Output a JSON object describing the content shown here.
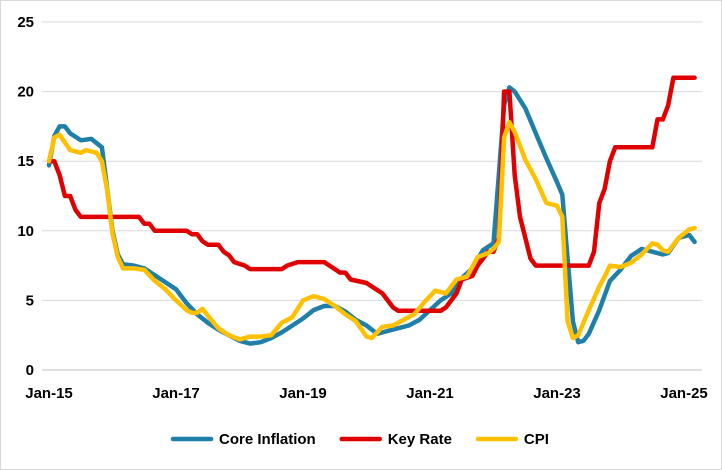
{
  "chart_data": {
    "type": "line",
    "title": "",
    "xlabel": "",
    "ylabel": "",
    "x_start": "Jan-15",
    "x_end": "Mar-25",
    "xticks": [
      "Jan-15",
      "Jan-17",
      "Jan-19",
      "Jan-21",
      "Jan-23",
      "Jan-25"
    ],
    "ylim": [
      0,
      25
    ],
    "yticks": [
      0,
      5,
      10,
      15,
      20,
      25
    ],
    "grid": true,
    "legend_position": "bottom",
    "series": [
      {
        "name": "Core Inflation",
        "color": "#1f7fa8",
        "points": [
          [
            "Jan-15",
            14.7
          ],
          [
            "Feb-15",
            16.8
          ],
          [
            "Mar-15",
            17.5
          ],
          [
            "Apr-15",
            17.5
          ],
          [
            "May-15",
            17.0
          ],
          [
            "Jul-15",
            16.5
          ],
          [
            "Sep-15",
            16.6
          ],
          [
            "Nov-15",
            16.0
          ],
          [
            "Dec-15",
            13.0
          ],
          [
            "Jan-16",
            10.0
          ],
          [
            "Feb-16",
            8.3
          ],
          [
            "Mar-16",
            7.6
          ],
          [
            "May-16",
            7.5
          ],
          [
            "Jul-16",
            7.3
          ],
          [
            "Sep-16",
            6.8
          ],
          [
            "Nov-16",
            6.3
          ],
          [
            "Jan-17",
            5.8
          ],
          [
            "Mar-17",
            4.8
          ],
          [
            "May-17",
            4.0
          ],
          [
            "Jul-17",
            3.4
          ],
          [
            "Sep-17",
            2.9
          ],
          [
            "Nov-17",
            2.5
          ],
          [
            "Jan-18",
            2.1
          ],
          [
            "Mar-18",
            1.9
          ],
          [
            "May-18",
            2.0
          ],
          [
            "Jul-18",
            2.3
          ],
          [
            "Sep-18",
            2.7
          ],
          [
            "Nov-18",
            3.2
          ],
          [
            "Jan-19",
            3.7
          ],
          [
            "Mar-19",
            4.3
          ],
          [
            "May-19",
            4.6
          ],
          [
            "Jul-19",
            4.6
          ],
          [
            "Sep-19",
            4.2
          ],
          [
            "Nov-19",
            3.6
          ],
          [
            "Jan-20",
            3.2
          ],
          [
            "Mar-20",
            2.6
          ],
          [
            "May-20",
            2.8
          ],
          [
            "Jul-20",
            3.0
          ],
          [
            "Sep-20",
            3.2
          ],
          [
            "Nov-20",
            3.6
          ],
          [
            "Jan-21",
            4.3
          ],
          [
            "Mar-21",
            5.0
          ],
          [
            "May-21",
            5.5
          ],
          [
            "Jul-21",
            6.6
          ],
          [
            "Sep-21",
            7.3
          ],
          [
            "Nov-21",
            8.6
          ],
          [
            "Jan-22",
            9.1
          ],
          [
            "Feb-22",
            14.0
          ],
          [
            "Mar-22",
            19.0
          ],
          [
            "Apr-22",
            20.3
          ],
          [
            "May-22",
            20.0
          ],
          [
            "Jul-22",
            18.8
          ],
          [
            "Sep-22",
            17.0
          ],
          [
            "Nov-22",
            15.2
          ],
          [
            "Jan-23",
            13.5
          ],
          [
            "Feb-23",
            12.6
          ],
          [
            "Mar-23",
            8.0
          ],
          [
            "Apr-23",
            3.5
          ],
          [
            "May-23",
            2.0
          ],
          [
            "Jun-23",
            2.1
          ],
          [
            "Jul-23",
            2.6
          ],
          [
            "Sep-23",
            4.3
          ],
          [
            "Nov-23",
            6.4
          ],
          [
            "Jan-24",
            7.2
          ],
          [
            "Mar-24",
            8.2
          ],
          [
            "May-24",
            8.7
          ],
          [
            "Jul-24",
            8.5
          ],
          [
            "Sep-24",
            8.3
          ],
          [
            "Oct-24",
            8.4
          ],
          [
            "Dec-24",
            9.5
          ],
          [
            "Feb-25",
            9.7
          ],
          [
            "Mar-25",
            9.2
          ]
        ]
      },
      {
        "name": "Key Rate",
        "color": "#e00000",
        "points": [
          [
            "Jan-15",
            15.0
          ],
          [
            "Feb-15",
            15.0
          ],
          [
            "Mar-15",
            14.0
          ],
          [
            "Apr-15",
            12.5
          ],
          [
            "May-15",
            12.5
          ],
          [
            "Jun-15",
            11.5
          ],
          [
            "Jul-15",
            11.0
          ],
          [
            "Aug-15",
            11.0
          ],
          [
            "Jun-16",
            11.0
          ],
          [
            "Jul-16",
            10.5
          ],
          [
            "Aug-16",
            10.5
          ],
          [
            "Sep-16",
            10.0
          ],
          [
            "Mar-17",
            10.0
          ],
          [
            "Apr-17",
            9.75
          ],
          [
            "May-17",
            9.75
          ],
          [
            "Jun-17",
            9.25
          ],
          [
            "Jul-17",
            9.0
          ],
          [
            "Sep-17",
            9.0
          ],
          [
            "Oct-17",
            8.5
          ],
          [
            "Nov-17",
            8.25
          ],
          [
            "Dec-17",
            7.75
          ],
          [
            "Feb-18",
            7.5
          ],
          [
            "Mar-18",
            7.25
          ],
          [
            "Sep-18",
            7.25
          ],
          [
            "Oct-18",
            7.5
          ],
          [
            "Dec-18",
            7.75
          ],
          [
            "May-19",
            7.75
          ],
          [
            "Jun-19",
            7.5
          ],
          [
            "Jul-19",
            7.25
          ],
          [
            "Aug-19",
            7.0
          ],
          [
            "Sep-19",
            7.0
          ],
          [
            "Oct-19",
            6.5
          ],
          [
            "Jan-20",
            6.25
          ],
          [
            "Feb-20",
            6.0
          ],
          [
            "Apr-20",
            5.5
          ],
          [
            "Jun-20",
            4.5
          ],
          [
            "Jul-20",
            4.25
          ],
          [
            "Mar-21",
            4.25
          ],
          [
            "Apr-21",
            4.5
          ],
          [
            "May-21",
            5.0
          ],
          [
            "Jun-21",
            5.5
          ],
          [
            "Jul-21",
            6.5
          ],
          [
            "Sep-21",
            6.75
          ],
          [
            "Oct-21",
            7.5
          ],
          [
            "Dec-21",
            8.5
          ],
          [
            "Jan-22",
            8.5
          ],
          [
            "Feb-22",
            9.5
          ],
          [
            "Mar-22",
            20.0
          ],
          [
            "Apr-22",
            20.0
          ],
          [
            "May-22",
            14.0
          ],
          [
            "Jun-22",
            11.0
          ],
          [
            "Jul-22",
            9.5
          ],
          [
            "Aug-22",
            8.0
          ],
          [
            "Sep-22",
            7.5
          ],
          [
            "Jul-23",
            7.5
          ],
          [
            "Aug-23",
            8.5
          ],
          [
            "Sep-23",
            12.0
          ],
          [
            "Oct-23",
            13.0
          ],
          [
            "Nov-23",
            15.0
          ],
          [
            "Dec-23",
            16.0
          ],
          [
            "Jul-24",
            16.0
          ],
          [
            "Aug-24",
            18.0
          ],
          [
            "Sep-24",
            18.0
          ],
          [
            "Oct-24",
            19.0
          ],
          [
            "Nov-24",
            21.0
          ],
          [
            "Mar-25",
            21.0
          ]
        ]
      },
      {
        "name": "CPI",
        "color": "#ffc000",
        "points": [
          [
            "Jan-15",
            15.0
          ],
          [
            "Feb-15",
            16.7
          ],
          [
            "Mar-15",
            16.9
          ],
          [
            "May-15",
            15.8
          ],
          [
            "Jul-15",
            15.6
          ],
          [
            "Aug-15",
            15.8
          ],
          [
            "Oct-15",
            15.6
          ],
          [
            "Nov-15",
            15.0
          ],
          [
            "Dec-15",
            12.9
          ],
          [
            "Jan-16",
            9.8
          ],
          [
            "Feb-16",
            8.1
          ],
          [
            "Mar-16",
            7.3
          ],
          [
            "May-16",
            7.3
          ],
          [
            "Jul-16",
            7.2
          ],
          [
            "Sep-16",
            6.4
          ],
          [
            "Nov-16",
            5.8
          ],
          [
            "Jan-17",
            5.0
          ],
          [
            "Mar-17",
            4.3
          ],
          [
            "Apr-17",
            4.1
          ],
          [
            "May-17",
            4.1
          ],
          [
            "Jun-17",
            4.4
          ],
          [
            "Jul-17",
            3.9
          ],
          [
            "Sep-17",
            3.0
          ],
          [
            "Nov-17",
            2.5
          ],
          [
            "Jan-18",
            2.2
          ],
          [
            "Mar-18",
            2.4
          ],
          [
            "May-18",
            2.4
          ],
          [
            "Jul-18",
            2.5
          ],
          [
            "Sep-18",
            3.4
          ],
          [
            "Nov-18",
            3.8
          ],
          [
            "Jan-19",
            5.0
          ],
          [
            "Mar-19",
            5.3
          ],
          [
            "May-19",
            5.1
          ],
          [
            "Jul-19",
            4.6
          ],
          [
            "Sep-19",
            4.0
          ],
          [
            "Nov-19",
            3.5
          ],
          [
            "Jan-20",
            2.4
          ],
          [
            "Feb-20",
            2.3
          ],
          [
            "Apr-20",
            3.1
          ],
          [
            "Jun-20",
            3.2
          ],
          [
            "Aug-20",
            3.6
          ],
          [
            "Oct-20",
            4.0
          ],
          [
            "Dec-20",
            4.9
          ],
          [
            "Feb-21",
            5.7
          ],
          [
            "Apr-21",
            5.5
          ],
          [
            "Jun-21",
            6.5
          ],
          [
            "Aug-21",
            6.7
          ],
          [
            "Oct-21",
            8.1
          ],
          [
            "Dec-21",
            8.4
          ],
          [
            "Jan-22",
            8.7
          ],
          [
            "Feb-22",
            9.2
          ],
          [
            "Mar-22",
            16.7
          ],
          [
            "Apr-22",
            17.8
          ],
          [
            "May-22",
            17.1
          ],
          [
            "Jul-22",
            15.1
          ],
          [
            "Sep-22",
            13.7
          ],
          [
            "Nov-22",
            12.0
          ],
          [
            "Jan-23",
            11.8
          ],
          [
            "Feb-23",
            11.0
          ],
          [
            "Mar-23",
            3.5
          ],
          [
            "Apr-23",
            2.3
          ],
          [
            "May-23",
            2.5
          ],
          [
            "Jul-23",
            4.3
          ],
          [
            "Sep-23",
            6.0
          ],
          [
            "Oct-23",
            6.7
          ],
          [
            "Nov-23",
            7.5
          ],
          [
            "Jan-24",
            7.4
          ],
          [
            "Mar-24",
            7.7
          ],
          [
            "May-24",
            8.3
          ],
          [
            "Jul-24",
            9.1
          ],
          [
            "Aug-24",
            9.0
          ],
          [
            "Sep-24",
            8.6
          ],
          [
            "Oct-24",
            8.5
          ],
          [
            "Dec-24",
            9.5
          ],
          [
            "Feb-25",
            10.1
          ],
          [
            "Mar-25",
            10.2
          ]
        ]
      }
    ]
  }
}
